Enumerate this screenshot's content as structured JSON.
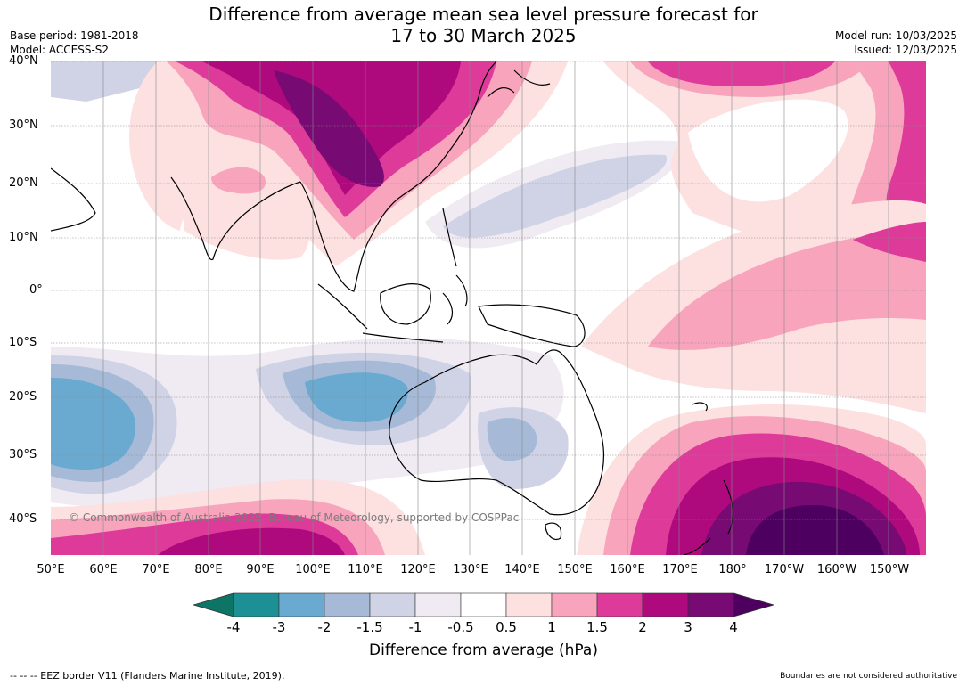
{
  "header": {
    "title_line1": "Difference from average mean sea level pressure forecast for",
    "title_line2": "17 to 30 March 2025",
    "base_period": "Base period: 1981-2018",
    "model": "Model: ACCESS-S2",
    "model_run": "Model run: 10/03/2025",
    "issued": "Issued: 12/03/2025"
  },
  "map": {
    "lat_labels": [
      "40°N",
      "30°N",
      "20°N",
      "10°N",
      "0°",
      "10°S",
      "20°S",
      "30°S",
      "40°S"
    ],
    "lon_labels": [
      "50°E",
      "60°E",
      "70°E",
      "80°E",
      "90°E",
      "100°E",
      "110°E",
      "120°E",
      "130°E",
      "140°E",
      "150°E",
      "160°E",
      "170°E",
      "180°",
      "170°W",
      "160°W",
      "150°W"
    ],
    "copyright": "© Commonwealth of Australia 2025, Bureau of Meteorology, supported by COSPPac"
  },
  "colorbar": {
    "ticks": [
      "-4",
      "-3",
      "-2",
      "-1.5",
      "-1",
      "-0.5",
      "0.5",
      "1",
      "1.5",
      "2",
      "3",
      "4"
    ],
    "colors": [
      "#0d7566",
      "#1d9096",
      "#6aaad1",
      "#a6bad8",
      "#d0d3e6",
      "#f0ebf3",
      "#ffffff",
      "#fde0e0",
      "#f7a4bc",
      "#dd3a9a",
      "#ae0a7e",
      "#780a74",
      "#4d0060"
    ],
    "label": "Difference from average (hPa)"
  },
  "footer": {
    "eez_note": "--  --  -- EEZ border V11 (Flanders Marine Institute, 2019).",
    "disclaimer": "Boundaries are not considered authoritative"
  }
}
